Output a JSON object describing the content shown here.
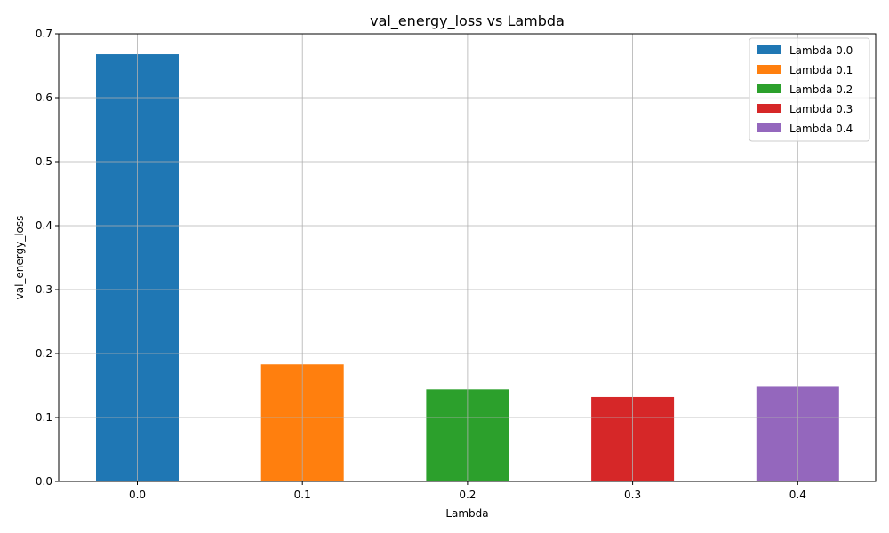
{
  "chart_data": {
    "type": "bar",
    "title": "val_energy_loss vs Lambda",
    "xlabel": "Lambda",
    "ylabel": "val_energy_loss",
    "categories": [
      "0.0",
      "0.1",
      "0.2",
      "0.3",
      "0.4"
    ],
    "ylim": [
      0,
      0.7
    ],
    "yticks": [
      "0.0",
      "0.1",
      "0.2",
      "0.3",
      "0.4",
      "0.5",
      "0.6",
      "0.7"
    ],
    "grid": true,
    "legend_position": "top-right",
    "series": [
      {
        "name": "Lambda 0.0",
        "category": "0.0",
        "value": 0.668,
        "color": "#1f77b4"
      },
      {
        "name": "Lambda 0.1",
        "category": "0.1",
        "value": 0.183,
        "color": "#ff7f0e"
      },
      {
        "name": "Lambda 0.2",
        "category": "0.2",
        "value": 0.144,
        "color": "#2ca02c"
      },
      {
        "name": "Lambda 0.3",
        "category": "0.3",
        "value": 0.132,
        "color": "#d62728"
      },
      {
        "name": "Lambda 0.4",
        "category": "0.4",
        "value": 0.148,
        "color": "#9467bd"
      }
    ]
  }
}
